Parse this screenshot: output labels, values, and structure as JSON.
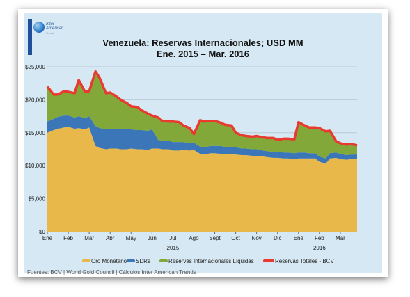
{
  "logo": {
    "line1": "Inter",
    "line2": "American",
    "line3": "Trends"
  },
  "colors": {
    "gold": "#e8b84a",
    "sdr": "#3a76b8",
    "liquid": "#82a83a",
    "total": "#e83a2e",
    "plot_bg": "#d6e8f3"
  },
  "footer": {
    "source": "Fuentes: BCV | World Gold Council  | Cálculos Inter American Trends"
  },
  "chart_data": {
    "type": "area",
    "title": "Venezuela: Reservas Internacionales; USD MM",
    "subtitle": "Ene. 2015 – Mar. 2016",
    "ylim": [
      0,
      25000
    ],
    "y_ticks": [
      0,
      5000,
      10000,
      15000,
      20000,
      25000
    ],
    "y_tick_labels": [
      "$0",
      "$5,000",
      "$10,000",
      "$15,000",
      "$20,000",
      "$25,000"
    ],
    "x_ticks": [
      "Ene",
      "Feb",
      "Mar",
      "Abr",
      "May",
      "Jun",
      "Jul",
      "Ago",
      "Sept",
      "Oct",
      "Nov",
      "Dic",
      "Ene",
      "Feb",
      "Mar"
    ],
    "year_labels": [
      {
        "label": "2015",
        "at_month_index": 6
      },
      {
        "label": "2016",
        "at_month_index": 13
      }
    ],
    "x_months": [
      0,
      0.3,
      0.5,
      0.8,
      1.0,
      1.3,
      1.5,
      1.8,
      2.0,
      2.3,
      2.5,
      2.8,
      3.0,
      3.3,
      3.5,
      3.8,
      4.0,
      4.3,
      4.5,
      4.8,
      5.0,
      5.3,
      5.5,
      5.8,
      6.0,
      6.3,
      6.5,
      6.8,
      7.0,
      7.3,
      7.5,
      7.8,
      8.0,
      8.3,
      8.5,
      8.8,
      9.0,
      9.3,
      9.5,
      9.8,
      10.0,
      10.3,
      10.5,
      10.8,
      11.0,
      11.3,
      11.5,
      11.8,
      12.0,
      12.3,
      12.5,
      12.8,
      13.0,
      13.3,
      13.5,
      13.8,
      14.0,
      14.3,
      14.5,
      14.8
    ],
    "grid": true,
    "legend_position": "bottom",
    "series": [
      {
        "name": "Oro Monetario",
        "stacked": true,
        "values": [
          15000,
          15400,
          15600,
          15800,
          15900,
          15600,
          15700,
          15500,
          15800,
          13000,
          12700,
          12500,
          12600,
          12600,
          12500,
          12500,
          12600,
          12500,
          12500,
          12400,
          12600,
          12600,
          12500,
          12500,
          12300,
          12300,
          12400,
          12300,
          12400,
          11800,
          11700,
          11900,
          11900,
          11800,
          11700,
          11800,
          11700,
          11600,
          11600,
          11500,
          11500,
          11400,
          11300,
          11200,
          11200,
          11100,
          11100,
          11000,
          11100,
          11100,
          11100,
          11100,
          10600,
          10300,
          11100,
          11200,
          11000,
          10900,
          11000,
          11000
        ]
      },
      {
        "name": "SDRs",
        "stacked": true,
        "values": [
          1700,
          1700,
          1800,
          1800,
          1700,
          1700,
          1800,
          1700,
          1700,
          3000,
          3000,
          3000,
          3000,
          2900,
          3000,
          3000,
          2900,
          2900,
          2900,
          2900,
          2900,
          1300,
          1300,
          1300,
          1300,
          1300,
          1200,
          1100,
          1100,
          1100,
          1100,
          1100,
          1100,
          1200,
          1100,
          1100,
          1100,
          1000,
          1000,
          1000,
          1000,
          900,
          900,
          900,
          900,
          900,
          900,
          900,
          900,
          900,
          800,
          800,
          800,
          800,
          800,
          800,
          800,
          700,
          700,
          700
        ]
      },
      {
        "name": "Reservas Internacionales Líquidas",
        "stacked": true,
        "values": [
          5300,
          3700,
          3400,
          3700,
          3600,
          3700,
          5500,
          4000,
          3800,
          8300,
          7600,
          5500,
          5500,
          5000,
          4500,
          4000,
          3500,
          3500,
          3000,
          2600,
          2100,
          3400,
          3000,
          2900,
          3100,
          3000,
          2500,
          2300,
          1300,
          4000,
          3900,
          3800,
          3800,
          3500,
          3400,
          3200,
          2200,
          2000,
          1900,
          1900,
          2000,
          2000,
          2000,
          2100,
          1800,
          2100,
          2100,
          2100,
          4600,
          4100,
          3900,
          3900,
          4300,
          4100,
          3400,
          1700,
          1600,
          1600,
          1600,
          1400
        ]
      },
      {
        "name": "Reservas Totales - BCV",
        "stacked": false,
        "values": [
          22000,
          20800,
          20800,
          21300,
          21200,
          21000,
          23000,
          21200,
          21300,
          24300,
          23300,
          21000,
          21100,
          20500,
          20000,
          19500,
          19000,
          18900,
          18400,
          17900,
          17600,
          17300,
          16800,
          16700,
          16700,
          16600,
          16100,
          15700,
          14800,
          16900,
          16700,
          16800,
          16800,
          16500,
          16200,
          16100,
          15000,
          14600,
          14500,
          14400,
          14500,
          14300,
          14200,
          14200,
          13900,
          14100,
          14100,
          14000,
          16600,
          16100,
          15800,
          15800,
          15700,
          15200,
          15300,
          13700,
          13400,
          13200,
          13300,
          13100
        ]
      }
    ]
  }
}
